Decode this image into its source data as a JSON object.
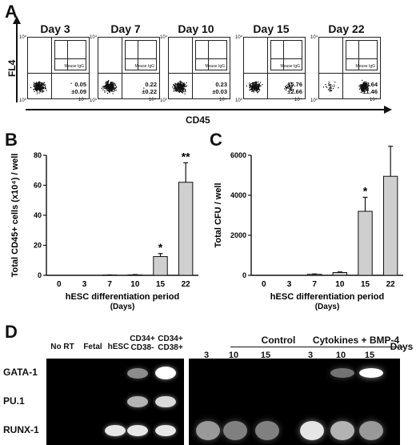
{
  "panels": {
    "a": "A",
    "b": "B",
    "c": "C",
    "d": "D"
  },
  "flow": {
    "y_axis_label": "FL4",
    "x_axis_label": "CD45",
    "inset_label": "Mouse IgG",
    "days": [
      {
        "day": "Day 3",
        "pct": "0.05",
        "sd": "±0.09",
        "inset_ll": "100",
        "inset_lr": "0"
      },
      {
        "day": "Day 7",
        "pct": "0.22",
        "sd": "±0.22",
        "inset_ll": "100",
        "inset_lr": "0"
      },
      {
        "day": "Day 10",
        "pct": "0.23",
        "sd": "±0.03",
        "inset_ll": "100",
        "inset_lr": "0"
      },
      {
        "day": "Day 15",
        "pct": "15.76",
        "sd": "±2.66",
        "inset_ll": "100",
        "inset_lr": "0"
      },
      {
        "day": "Day 22",
        "pct": "88.64",
        "sd": "±1.46",
        "inset_ll": "100",
        "inset_lr": "0"
      }
    ],
    "axis_ticks": [
      "10⁰",
      "10¹",
      "10²",
      "10³",
      "10⁴"
    ]
  },
  "chart_data": [
    {
      "type": "bar",
      "panel": "B",
      "categories": [
        "0",
        "3",
        "7",
        "10",
        "15",
        "22"
      ],
      "values": [
        0,
        0,
        0.2,
        0.3,
        12.5,
        62
      ],
      "errors": [
        0,
        0,
        0.1,
        0.2,
        2,
        13
      ],
      "significance": [
        "",
        "",
        "",
        "",
        "*",
        "**"
      ],
      "ylabel": "Total CD45+ cells (x10⁴) / well",
      "xlabel": "hESC differentiation period",
      "xsub": "(Days)",
      "ylim": [
        0,
        80
      ],
      "yticks": [
        "0",
        "20",
        "40",
        "60",
        "80"
      ]
    },
    {
      "type": "bar",
      "panel": "C",
      "categories": [
        "0",
        "3",
        "7",
        "10",
        "15",
        "22"
      ],
      "values": [
        0,
        0,
        50,
        140,
        3200,
        4950
      ],
      "errors": [
        0,
        0,
        20,
        30,
        700,
        1500
      ],
      "significance": [
        "",
        "",
        "",
        "",
        "*",
        "*"
      ],
      "ylabel": "Total CFU / well",
      "xlabel": "hESC differentiation period",
      "xsub": "(Days)",
      "ylim": [
        0,
        6000
      ],
      "yticks": [
        "0",
        "2000",
        "4000",
        "6000"
      ]
    }
  ],
  "gel": {
    "lanes_left": [
      "No RT",
      "Fetal",
      "hESC",
      "CD34+\nCD38-",
      "CD34+\nCD38+"
    ],
    "control_label": "Control",
    "cytokine_label": "Cytokines + BMP-4",
    "days_label": "Days",
    "control_days": [
      "3",
      "10",
      "15"
    ],
    "cytokine_days": [
      "3",
      "10",
      "15"
    ],
    "rows": [
      "GATA-1",
      "PU.1",
      "RUNX-1"
    ]
  }
}
